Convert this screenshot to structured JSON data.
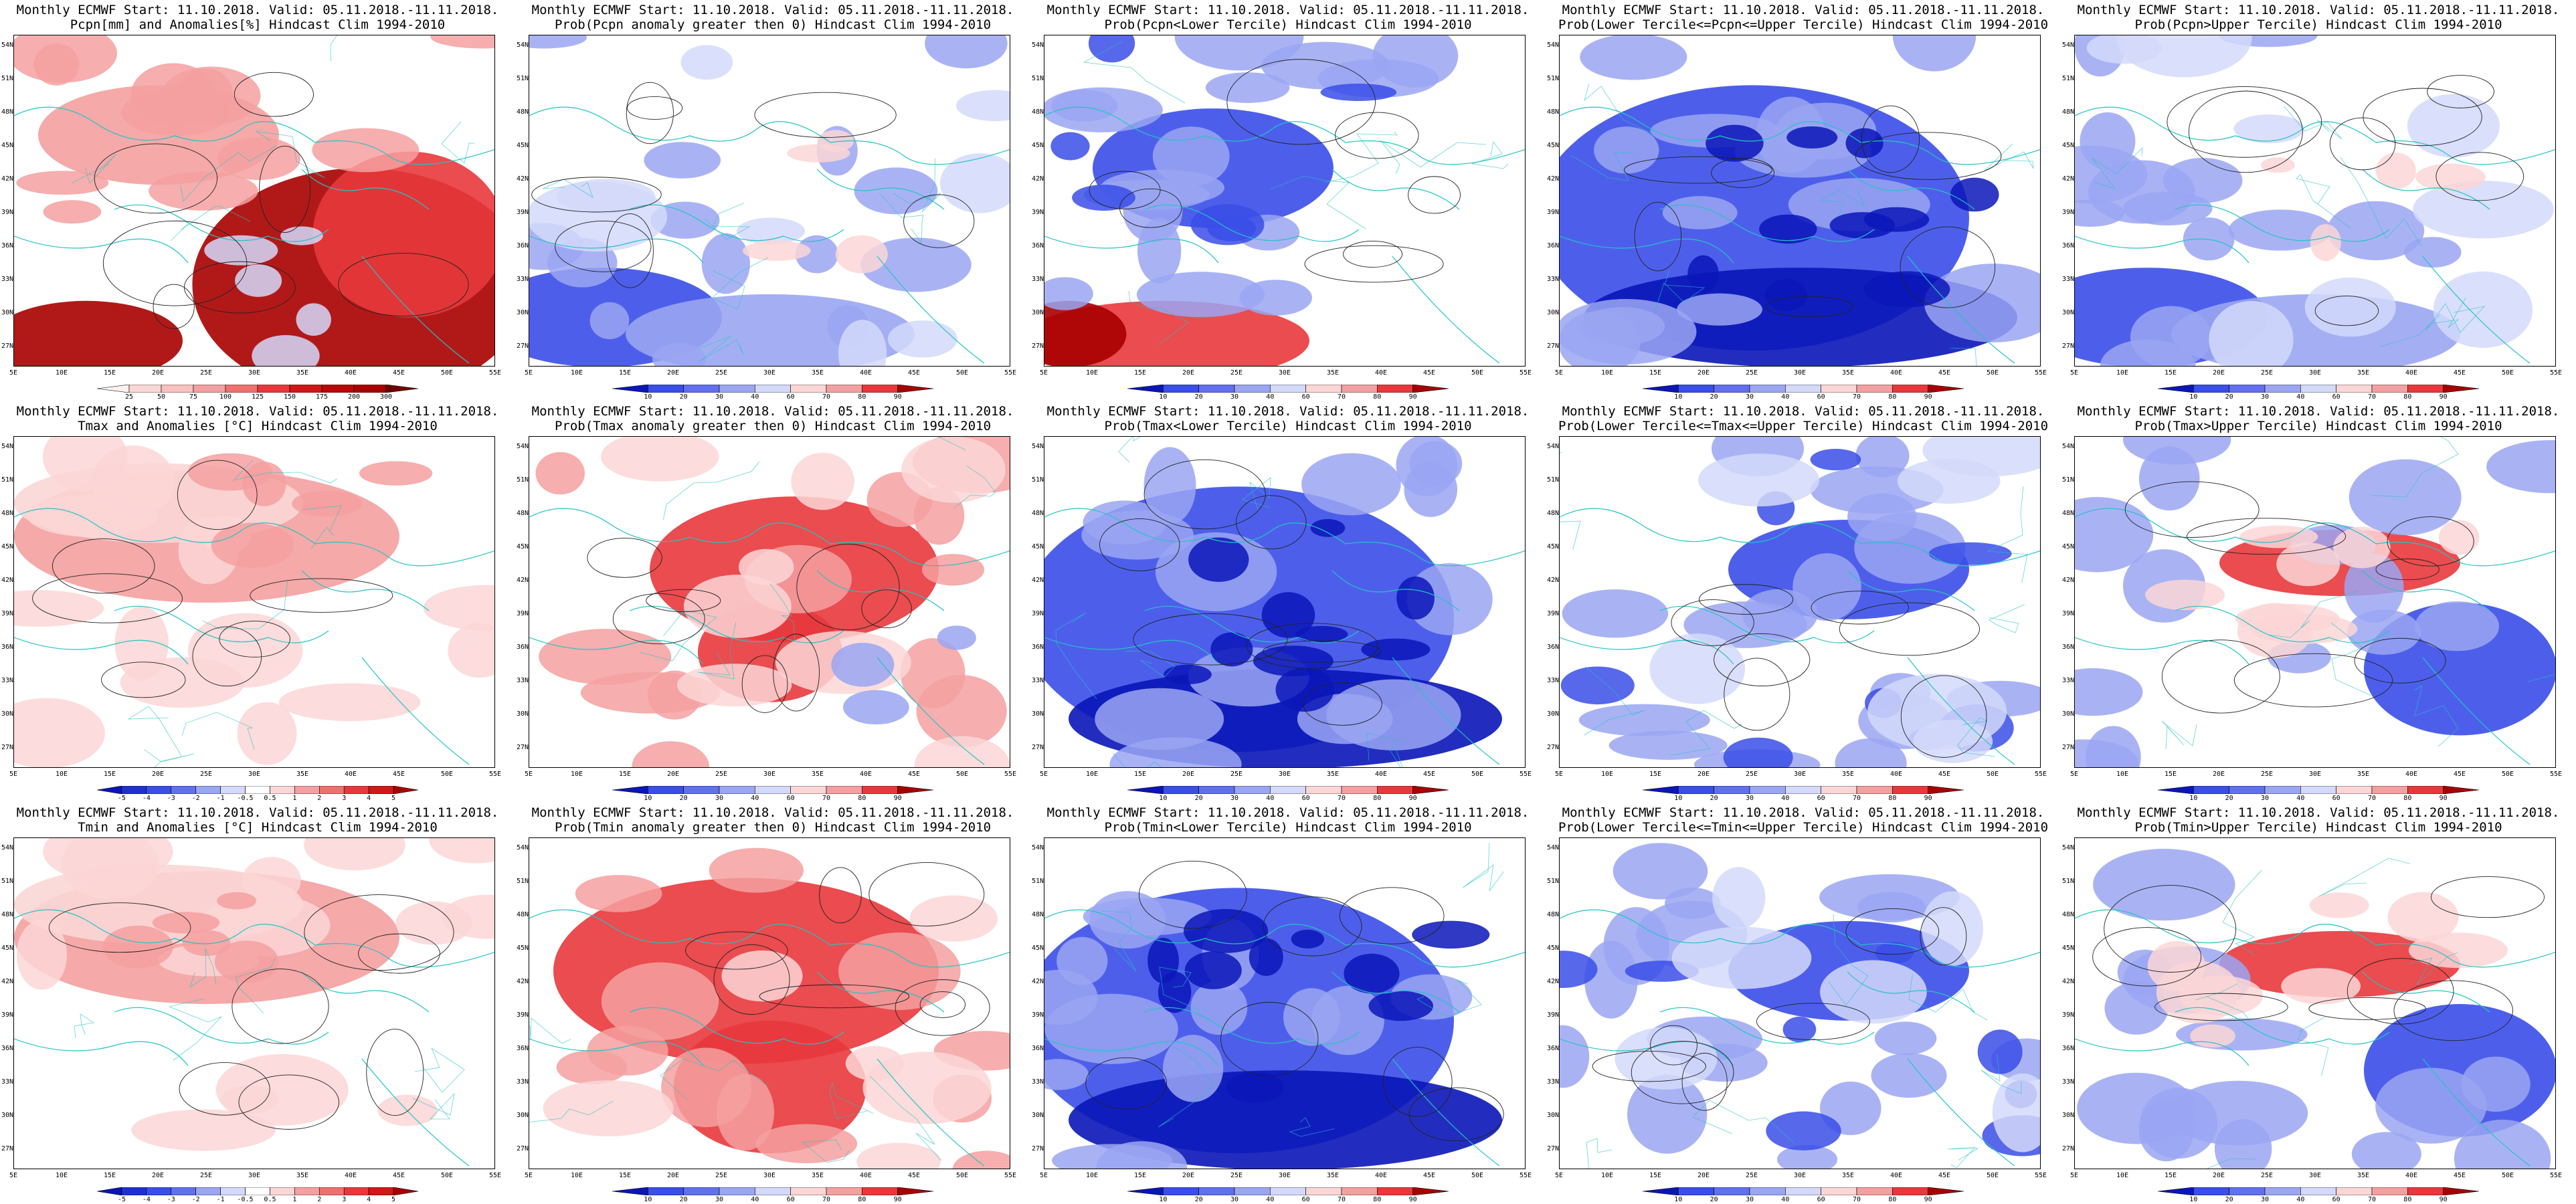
{
  "common": {
    "lat_labels": [
      "54N",
      "51N",
      "48N",
      "45N",
      "42N",
      "39N",
      "36N",
      "33N",
      "30N",
      "27N"
    ],
    "lon_labels": [
      "5E",
      "10E",
      "15E",
      "20E",
      "25E",
      "30E",
      "35E",
      "40E",
      "45E",
      "50E",
      "55E"
    ]
  },
  "scales": {
    "pcpn": [
      "25",
      "50",
      "75",
      "100",
      "125",
      "150",
      "175",
      "200",
      "300"
    ],
    "prob": [
      "10",
      "20",
      "30",
      "40",
      "60",
      "70",
      "80",
      "90"
    ],
    "temp": [
      "-5",
      "-4",
      "-3",
      "-2",
      "-1",
      "-0.5",
      "0.5",
      "1",
      "2",
      "3",
      "4",
      "5"
    ]
  },
  "panels": [
    {
      "line1": "Monthly ECMWF Start: 11.10.2018. Valid: 05.11.2018.-11.11.2018.",
      "line2": "Pcpn[mm] and Anomalies[%] Hindcast Clim 1994-2010",
      "scale": "pcpn",
      "theme": "pcpn_anom"
    },
    {
      "line1": "Monthly ECMWF Start: 11.10.2018. Valid: 05.11.2018.-11.11.2018.",
      "line2": "Prob(Pcpn anomaly greater then 0) Hindcast Clim 1994-2010",
      "scale": "prob",
      "theme": "mixed_blue"
    },
    {
      "line1": "Monthly ECMWF Start: 11.10.2018. Valid: 05.11.2018.-11.11.2018.",
      "line2": "Prob(Pcpn<Lower Tercile) Hindcast Clim 1994-2010",
      "scale": "prob",
      "theme": "blue_red_south"
    },
    {
      "line1": "Monthly ECMWF Start: 11.10.2018. Valid: 05.11.2018.-11.11.2018.",
      "line2": "Prob(Lower Tercile<=Pcpn<=Upper Tercile) Hindcast Clim 1994-2010",
      "scale": "prob",
      "theme": "deep_blue"
    },
    {
      "line1": "Monthly ECMWF Start: 11.10.2018. Valid: 05.11.2018.-11.11.2018.",
      "line2": "Prob(Pcpn>Upper Tercile) Hindcast Clim 1994-2010",
      "scale": "prob",
      "theme": "mixed_blue"
    },
    {
      "line1": "Monthly ECMWF Start: 11.10.2018. Valid: 05.11.2018.-11.11.2018.",
      "line2": "Tmax and Anomalies [°C] Hindcast Clim 1994-2010",
      "scale": "temp",
      "theme": "light_red"
    },
    {
      "line1": "Monthly ECMWF Start: 11.10.2018. Valid: 05.11.2018.-11.11.2018.",
      "line2": "Prob(Tmax anomaly greater then 0) Hindcast Clim 1994-2010",
      "scale": "prob",
      "theme": "red_center"
    },
    {
      "line1": "Monthly ECMWF Start: 11.10.2018. Valid: 05.11.2018.-11.11.2018.",
      "line2": "Prob(Tmax<Lower Tercile) Hindcast Clim 1994-2010",
      "scale": "prob",
      "theme": "deep_blue"
    },
    {
      "line1": "Monthly ECMWF Start: 11.10.2018. Valid: 05.11.2018.-11.11.2018.",
      "line2": "Prob(Lower Tercile<=Tmax<=Upper Tercile) Hindcast Clim 1994-2010",
      "scale": "prob",
      "theme": "blue_mid"
    },
    {
      "line1": "Monthly ECMWF Start: 11.10.2018. Valid: 05.11.2018.-11.11.2018.",
      "line2": "Prob(Tmax>Upper Tercile) Hindcast Clim 1994-2010",
      "scale": "prob",
      "theme": "red_band"
    },
    {
      "line1": "Monthly ECMWF Start: 11.10.2018. Valid: 05.11.2018.-11.11.2018.",
      "line2": "Tmin and Anomalies [°C] Hindcast Clim 1994-2010",
      "scale": "temp",
      "theme": "light_red"
    },
    {
      "line1": "Monthly ECMWF Start: 11.10.2018. Valid: 05.11.2018.-11.11.2018.",
      "line2": "Prob(Tmin anomaly greater then 0) Hindcast Clim 1994-2010",
      "scale": "prob",
      "theme": "red_strong"
    },
    {
      "line1": "Monthly ECMWF Start: 11.10.2018. Valid: 05.11.2018.-11.11.2018.",
      "line2": "Prob(Tmin<Lower Tercile) Hindcast Clim 1994-2010",
      "scale": "prob",
      "theme": "deep_blue"
    },
    {
      "line1": "Monthly ECMWF Start: 11.10.2018. Valid: 05.11.2018.-11.11.2018.",
      "line2": "Prob(Lower Tercile<=Tmin<=Upper Tercile) Hindcast Clim 1994-2010",
      "scale": "prob",
      "theme": "blue_mid"
    },
    {
      "line1": "Monthly ECMWF Start: 11.10.2018. Valid: 05.11.2018.-11.11.2018.",
      "line2": "Prob(Tmin>Upper Tercile) Hindcast Clim 1994-2010",
      "scale": "prob",
      "theme": "red_band"
    }
  ],
  "colors": {
    "deep_red": "#a80000",
    "red": "#e8383c",
    "light_red": "#f4a0a0",
    "pale_red": "#fbd6d6",
    "deep_blue": "#0a16b8",
    "blue": "#3a4ee8",
    "light_blue": "#9aa6f2",
    "pale_blue": "#d4d9fa",
    "coast": "#22c4c4",
    "contour": "#222222"
  }
}
